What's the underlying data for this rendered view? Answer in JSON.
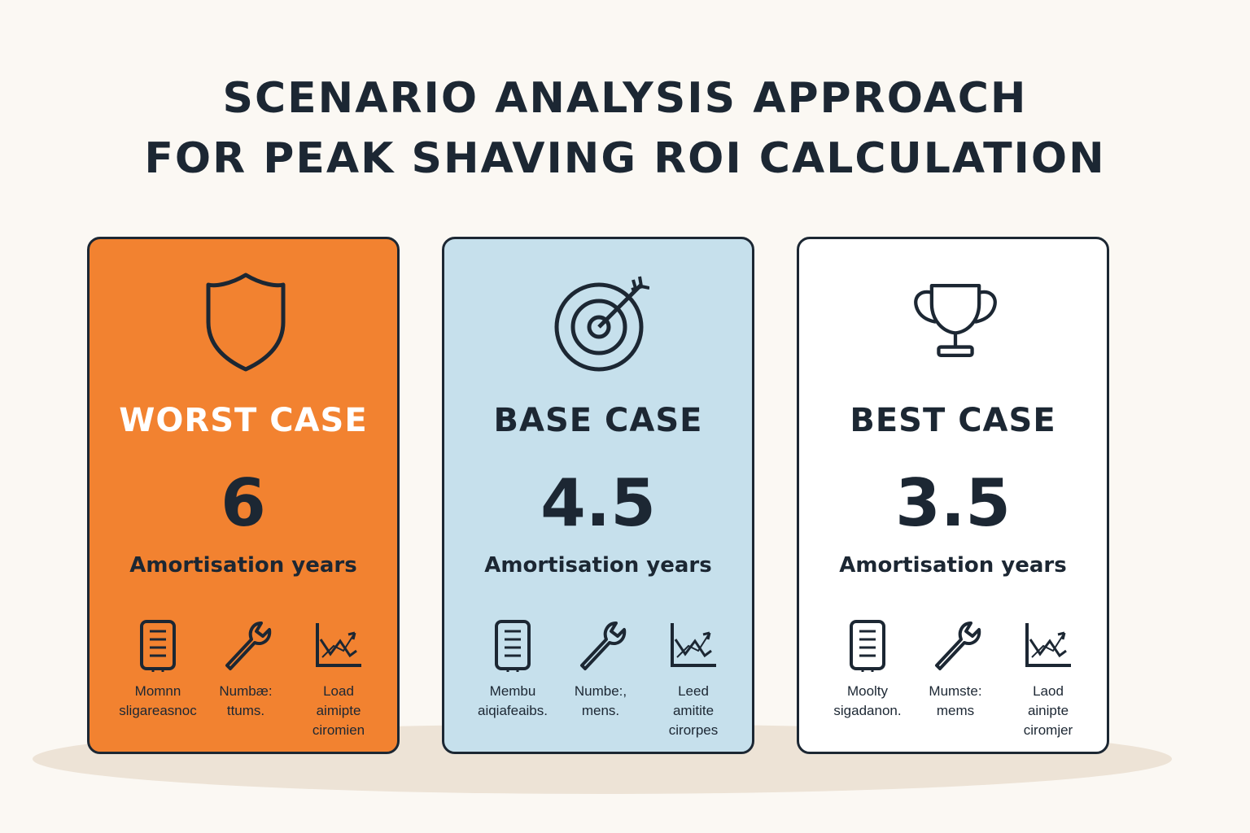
{
  "title": {
    "line1": "SCENARIO ANALYSIS APPROACH",
    "line2": "FOR PEAK SHAVING ROI CALCULATION"
  },
  "unit_label": "Amortisation years",
  "colors": {
    "worst_bg": "#f28230",
    "base_bg": "#c6e0ec",
    "best_bg": "#ffffff",
    "ink": "#1c2733",
    "page_bg": "#fbf8f3"
  },
  "cards": [
    {
      "name": "Worst Case",
      "label": "WORST CASE",
      "icon": "shield-icon",
      "value": "6",
      "unit": "Amortisation years",
      "factors": [
        {
          "icon": "battery-icon",
          "line1": "Momnn",
          "line2": "sligareasnoc",
          "line3": ""
        },
        {
          "icon": "wrench-icon",
          "line1": "Numbæ:",
          "line2": "ttums.",
          "line3": ""
        },
        {
          "icon": "chart-icon",
          "line1": "Load",
          "line2": "aimipte",
          "line3": "ciromien"
        }
      ]
    },
    {
      "name": "Base Case",
      "label": "BASE CASE",
      "icon": "target-icon",
      "value": "4.5",
      "unit": "Amortisation years",
      "factors": [
        {
          "icon": "battery-icon",
          "line1": "Membu",
          "line2": "aiqiafeaibs.",
          "line3": ""
        },
        {
          "icon": "wrench-icon",
          "line1": "Numbe:,",
          "line2": "mens.",
          "line3": ""
        },
        {
          "icon": "chart-icon",
          "line1": "Leed",
          "line2": "amitite",
          "line3": "cirorpes"
        }
      ]
    },
    {
      "name": "Best Case",
      "label": "BEST CASE",
      "icon": "trophy-icon",
      "value": "3.5",
      "unit": "Amortisation years",
      "factors": [
        {
          "icon": "battery-icon",
          "line1": "Moolty",
          "line2": "sigadanon.",
          "line3": ""
        },
        {
          "icon": "wrench-icon",
          "line1": "Mumste:",
          "line2": "mems",
          "line3": ""
        },
        {
          "icon": "chart-icon",
          "line1": "Laod",
          "line2": "ainipte",
          "line3": "ciromjer"
        }
      ]
    }
  ]
}
